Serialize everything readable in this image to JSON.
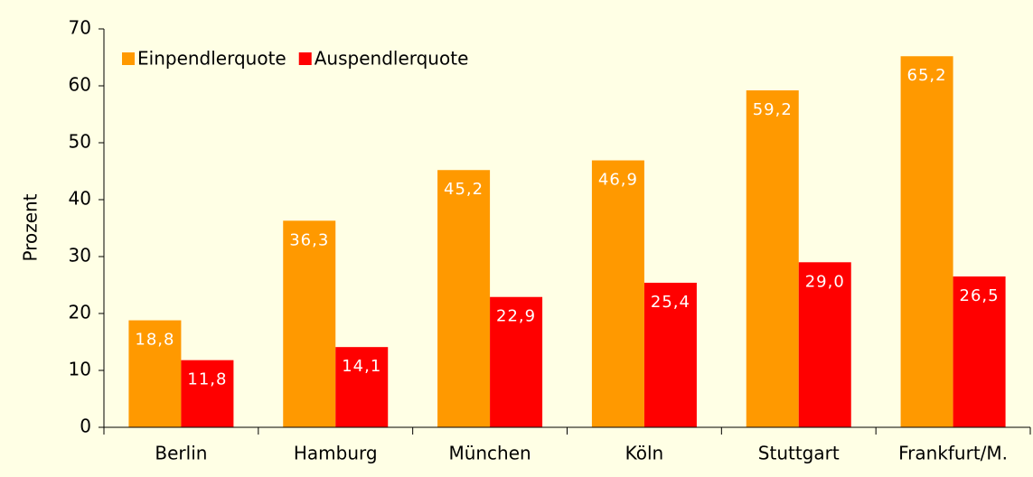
{
  "chart_data": {
    "type": "bar",
    "y_label": "Prozent",
    "categories": [
      "Berlin",
      "Hamburg",
      "München",
      "Köln",
      "Stuttgart",
      "Frankfurt/M."
    ],
    "series": [
      {
        "name": "Einpendlerquote",
        "color": "#ff9900",
        "values": [
          18.8,
          36.3,
          45.2,
          46.9,
          59.2,
          65.2
        ],
        "value_labels": [
          "18,8",
          "36,3",
          "45,2",
          "46,9",
          "59,2",
          "65,2"
        ]
      },
      {
        "name": "Auspendlerquote",
        "color": "#ff0000",
        "values": [
          11.8,
          14.1,
          22.9,
          25.4,
          29.0,
          26.5
        ],
        "value_labels": [
          "11,8",
          "14,1",
          "22,9",
          "25,4",
          "29,0",
          "26,5"
        ]
      }
    ],
    "ylim": [
      0,
      70
    ],
    "yticks": [
      0,
      10,
      20,
      30,
      40,
      50,
      60,
      70
    ],
    "legend": "top-left"
  }
}
